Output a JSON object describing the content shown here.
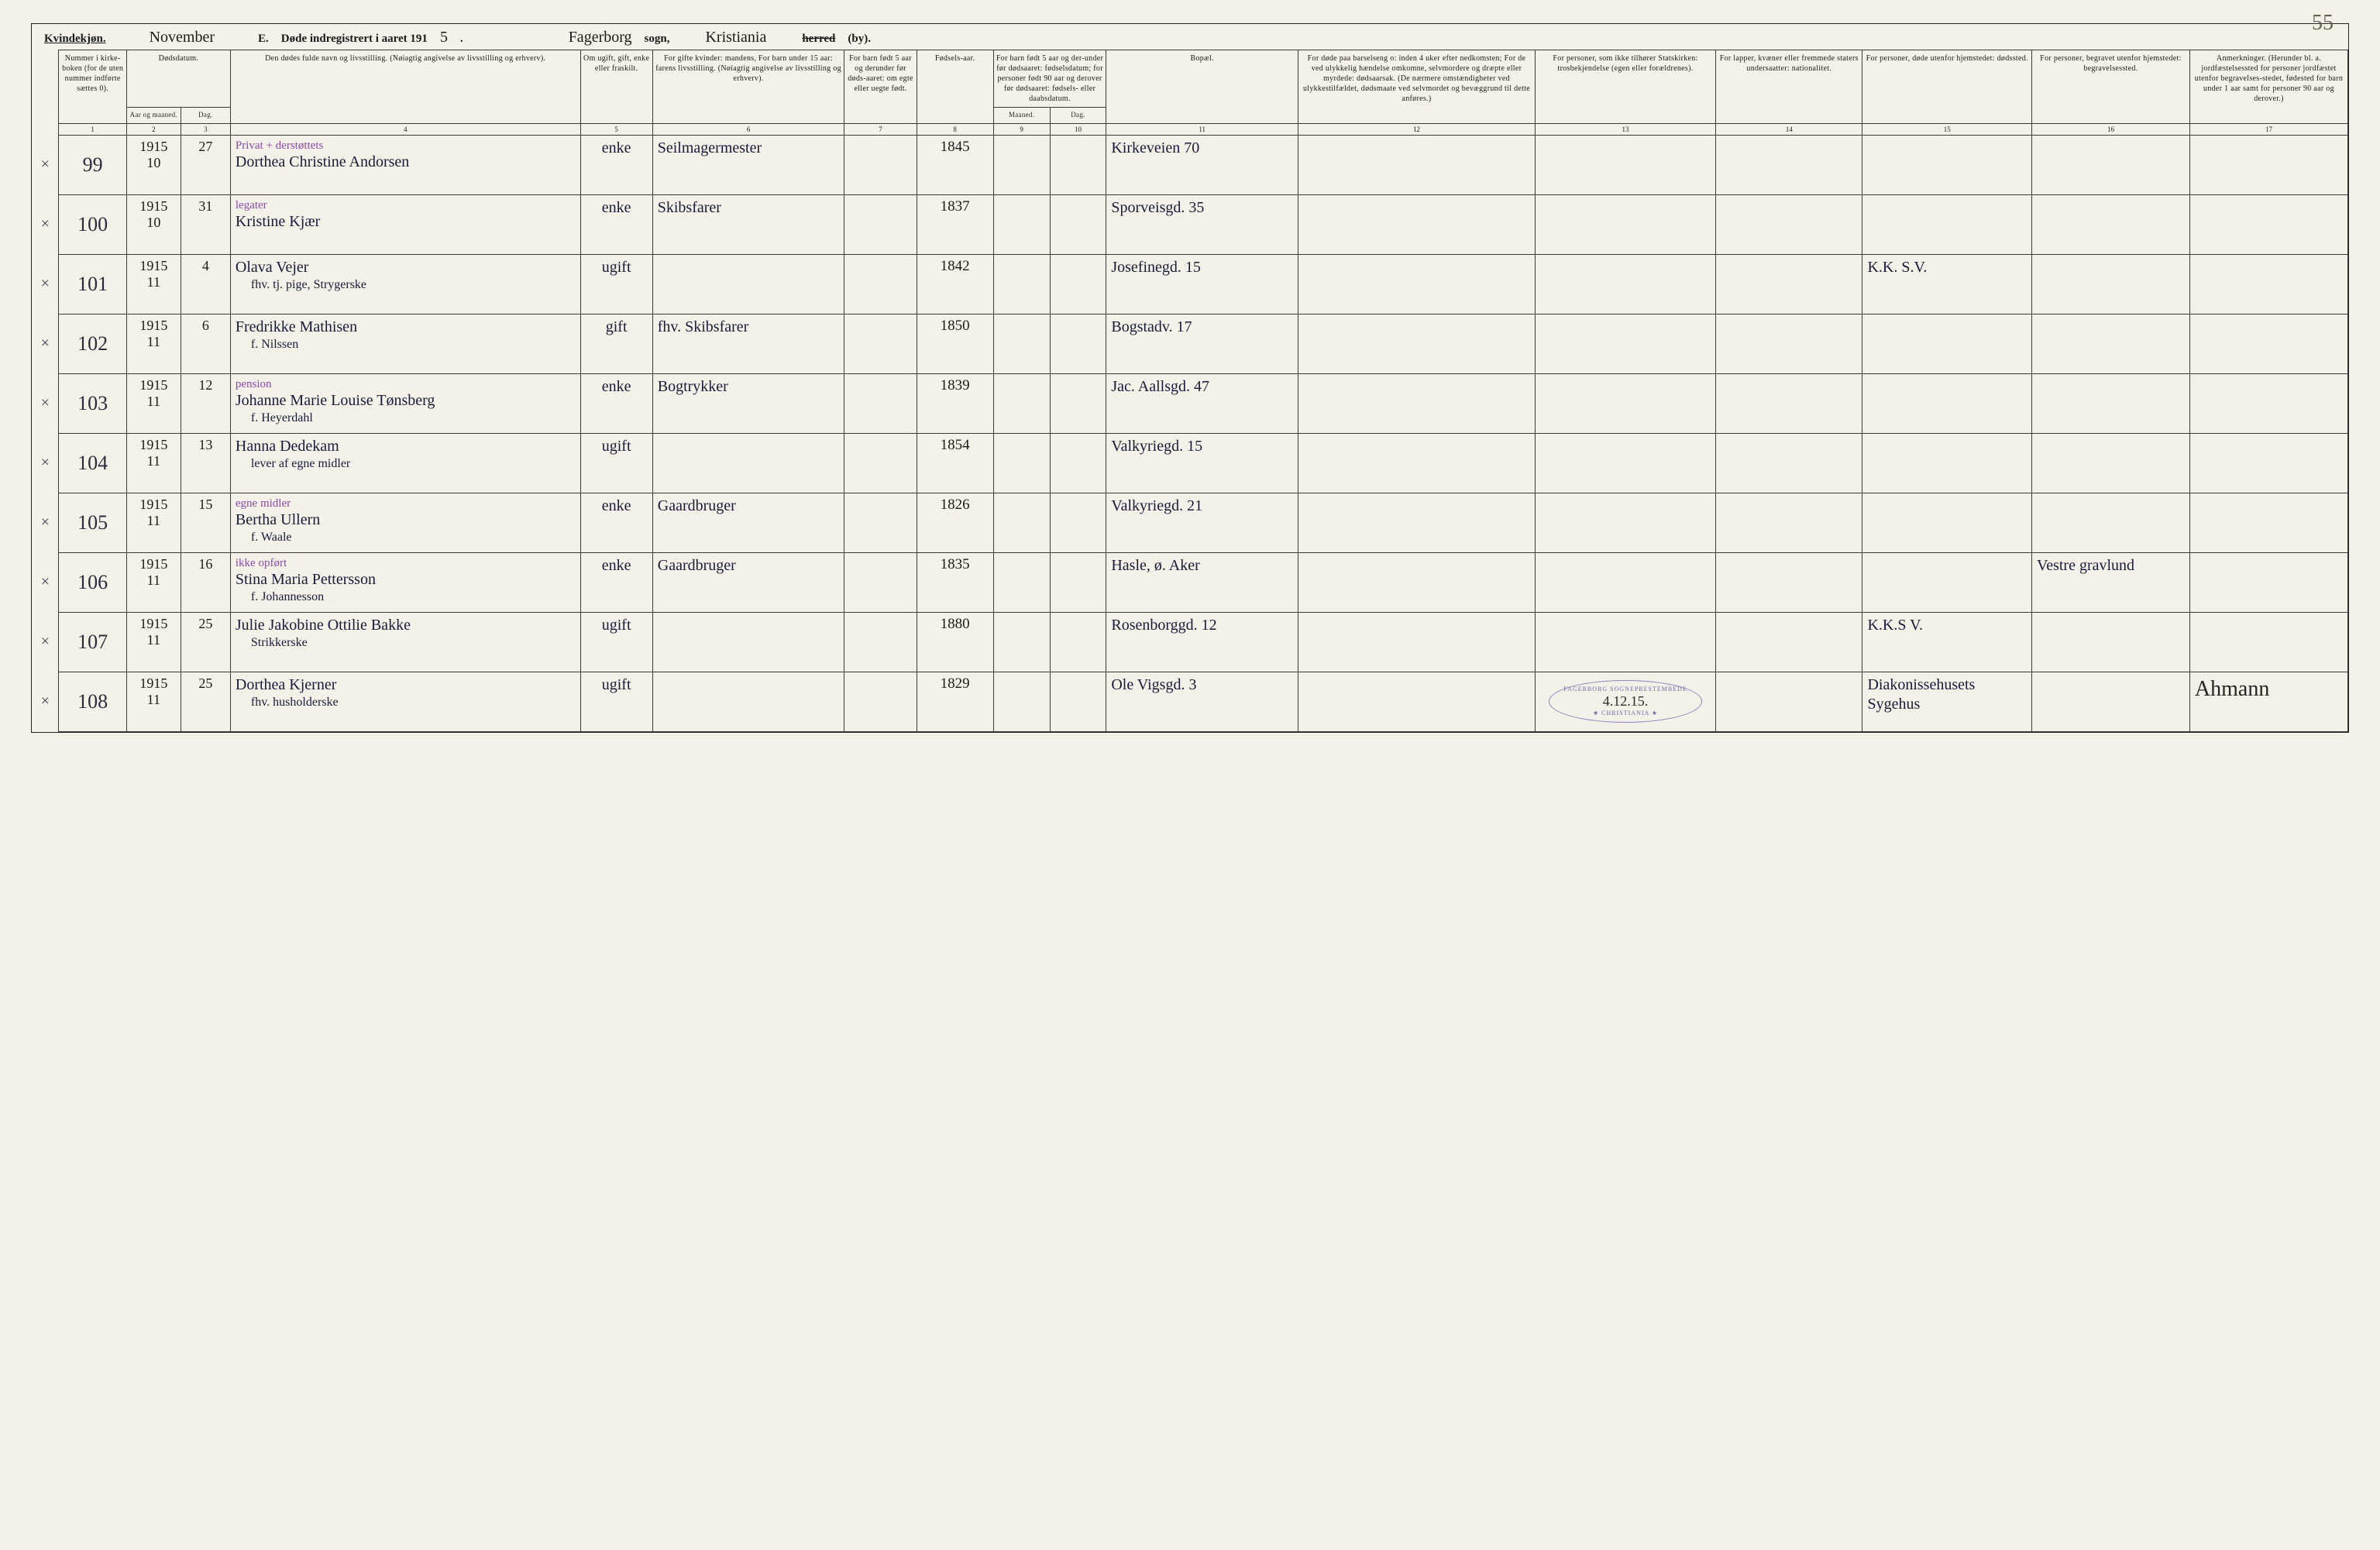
{
  "page_number_handwritten": "55",
  "header": {
    "kvindekjon": "Kvindekjøn.",
    "month_hand": "November",
    "section": "E.",
    "title_prefix": "Døde indregistrert i aaret 191",
    "year_hand": "5",
    "title_suffix": ".",
    "sogn_hand": "Fagerborg",
    "sogn_label": "sogn,",
    "herred_hand": "Kristiania",
    "herred_strike": "herred",
    "by_label": "(by)."
  },
  "column_headers": {
    "c1": "Nummer i kirke-boken (for de uten nummer indførte sættes 0).",
    "c2a": "Dødsdatum.",
    "c2b_aar": "Aar og maaned.",
    "c2b_dag": "Dag.",
    "c3": "Den dødes fulde navn og livsstilling.\n(Nøiagtig angivelse av livsstilling og erhverv).",
    "c4": "Om ugift, gift, enke eller fraskilt.",
    "c5": "For gifte kvinder:\nmandens,\nFor barn under 15 aar:\nfarens livsstilling.\n(Nøiagtig angivelse av livsstilling og erhverv).",
    "c6": "For barn født 5 aar og derunder før døds-aaret: om egte eller uegte født.",
    "c7": "Fødsels-aar.",
    "c8": "For barn født 5 aar og der-under før dødsaaret: fødselsdatum; for personer født 90 aar og derover før dødsaaret: fødsels- eller daabsdatum.",
    "c8_m": "Maaned.",
    "c8_d": "Dag.",
    "c9": "Bopæl.",
    "c10": "For døde paa barselseng o: inden 4 uker efter nedkomsten; For de ved ulykkelig hændelse omkomne, selvmordere og dræpte eller myrdede: dødsaarsak. (De nærmere omstændigheter ved ulykkestilfældet, dødsmaate ved selvmordet og bevæggrund til dette anføres.)",
    "c11": "For personer, som ikke tilhører Statskirken: trosbekjendelse (egen eller forældrenes).",
    "c12": "For lapper, kvæner eller fremmede staters undersaatter: nationalitet.",
    "c13": "For personer, døde utenfor hjemstedet: dødssted.",
    "c14": "For personer, begravet utenfor hjemstedet: begravelsessted.",
    "c15": "Anmerkninger. (Herunder bl. a. jordfæstelsessted for personer jordfæstet utenfor begravelses-stedet, fødested for barn under 1 aar samt for personer 90 aar og derover.)"
  },
  "colnums": [
    "1",
    "2",
    "3",
    "4",
    "5",
    "6",
    "7",
    "8",
    "9",
    "10",
    "11",
    "12",
    "13",
    "14",
    "15",
    "16",
    "17"
  ],
  "rows": [
    {
      "x": "×",
      "num": "99",
      "year": "1915",
      "month": "10",
      "day": "27",
      "name_note": "Privat + derstøttets",
      "name": "Dorthea Christine Andorsen",
      "name_sub": "",
      "status": "enke",
      "mandens": "Seilmagermester",
      "born": "1845",
      "bopael": "Kirkeveien 70"
    },
    {
      "x": "×",
      "num": "100",
      "year": "1915",
      "month": "10",
      "day": "31",
      "name_note": "legater",
      "name": "Kristine Kjær",
      "status": "enke",
      "mandens": "Skibsfarer",
      "born": "1837",
      "bopael": "Sporveisgd. 35"
    },
    {
      "x": "×",
      "num": "101",
      "year": "1915",
      "month": "11",
      "day": "4",
      "name": "Olava Vejer",
      "name_sub": "fhv. tj. pige, Strygerske",
      "status": "ugift",
      "mandens": "",
      "born": "1842",
      "bopael": "Josefinegd. 15",
      "col15": "K.K. S.V."
    },
    {
      "x": "×",
      "num": "102",
      "year": "1915",
      "month": "11",
      "day": "6",
      "name": "Fredrikke Mathisen",
      "name_sub": "f. Nilssen",
      "status": "gift",
      "mandens": "fhv. Skibsfarer",
      "born": "1850",
      "bopael": "Bogstadv. 17"
    },
    {
      "x": "×",
      "num": "103",
      "year": "1915",
      "month": "11",
      "day": "12",
      "name_note": "pension",
      "name": "Johanne Marie Louise Tønsberg",
      "name_sub": "f. Heyerdahl",
      "status": "enke",
      "mandens": "Bogtrykker",
      "born": "1839",
      "bopael": "Jac. Aallsgd. 47"
    },
    {
      "x": "×",
      "num": "104",
      "year": "1915",
      "month": "11",
      "day": "13",
      "name": "Hanna Dedekam",
      "name_sub": "lever af egne midler",
      "status": "ugift",
      "mandens": "",
      "born": "1854",
      "bopael": "Valkyriegd. 15"
    },
    {
      "x": "×",
      "num": "105",
      "year": "1915",
      "month": "11",
      "day": "15",
      "name_note": "egne midler",
      "name": "Bertha Ullern",
      "name_sub": "f. Waale",
      "status": "enke",
      "mandens": "Gaardbruger",
      "born": "1826",
      "bopael": "Valkyriegd. 21"
    },
    {
      "x": "×",
      "num": "106",
      "year": "1915",
      "month": "11",
      "day": "16",
      "name_note": "ikke opført",
      "name": "Stina Maria Pettersson",
      "name_sub": "f. Johannesson",
      "status": "enke",
      "mandens": "Gaardbruger",
      "born": "1835",
      "bopael": "Hasle, ø. Aker",
      "col16": "Vestre gravlund"
    },
    {
      "x": "×",
      "num": "107",
      "year": "1915",
      "month": "11",
      "day": "25",
      "name": "Julie Jakobine Ottilie Bakke",
      "name_sub": "Strikkerske",
      "status": "ugift",
      "mandens": "",
      "born": "1880",
      "bopael": "Rosenborggd. 12",
      "col15": "K.K.S V."
    },
    {
      "x": "×",
      "num": "108",
      "year": "1915",
      "month": "11",
      "day": "25",
      "name": "Dorthea Kjerner",
      "name_sub": "fhv. husholderske",
      "status": "ugift",
      "mandens": "",
      "born": "1829",
      "bopael": "Ole Vigsgd. 3",
      "stamp": {
        "top": "FAGERBORG SOGNEPRESTEMBEDE",
        "date": "4.12.15.",
        "bot": "★ CHRISTIANIA ★"
      },
      "col15": "Diakonissehusets Sygehus",
      "col17_sig": "Ahmann"
    }
  ]
}
